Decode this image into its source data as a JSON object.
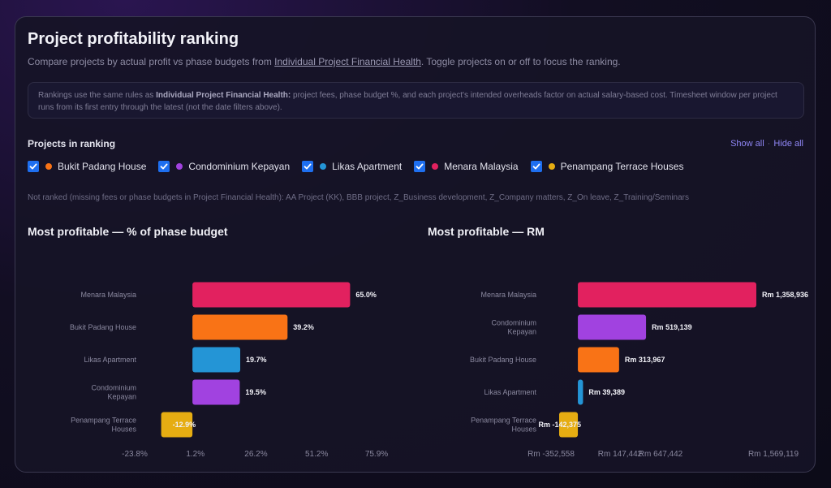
{
  "header": {
    "title": "Project profitability ranking",
    "subtitle_pre": "Compare projects by actual profit vs phase budgets from ",
    "subtitle_link": "Individual Project Financial Health",
    "subtitle_post": ". Toggle projects on or off to focus the ranking."
  },
  "note": {
    "line_pre": "Rankings use the same rules as ",
    "line_bold": "Individual Project Financial Health:",
    "line_post": " project fees, phase budget %, and each project's intended overheads factor on actual salary-based cost. Timesheet window per project runs from its first entry through the latest (not the date filters above)."
  },
  "ranking": {
    "label": "Projects in ranking",
    "show_all": "Show all",
    "separator": "·",
    "hide_all": "Hide all",
    "projects": [
      {
        "name": "Bukit Padang House",
        "color": "#f97316",
        "checked": true
      },
      {
        "name": "Condominium Kepayan",
        "color": "#a142e0",
        "checked": true
      },
      {
        "name": "Likas Apartment",
        "color": "#2495d6",
        "checked": true
      },
      {
        "name": "Menara Malaysia",
        "color": "#e2215f",
        "checked": true
      },
      {
        "name": "Penampang Terrace Houses",
        "color": "#e6ad12",
        "checked": true
      }
    ],
    "not_ranked": "Not ranked (missing fees or phase budgets in Project Financial Health): AA Project (KK), BBB project, Z_Business development, Z_Company matters, Z_On leave, Z_Training/Seminars"
  },
  "chart_data": [
    {
      "type": "bar",
      "orientation": "horizontal",
      "title": "Most profitable — % of phase budget",
      "categories": [
        [
          "Menara Malaysia"
        ],
        [
          "Bukit Padang House"
        ],
        [
          "Likas Apartment"
        ],
        [
          "Condominium",
          "Kepayan"
        ],
        [
          "Penampang Terrace",
          "Houses"
        ]
      ],
      "values": [
        65.0,
        39.2,
        19.7,
        19.5,
        -12.9
      ],
      "value_labels": [
        "65.0%",
        "39.2%",
        "19.7%",
        "19.5%",
        "-12.9%"
      ],
      "colors": [
        "#e2215f",
        "#f97316",
        "#2495d6",
        "#a142e0",
        "#e6ad12"
      ],
      "xlim": [
        -23.8,
        75.9
      ],
      "ticks": [
        -23.8,
        1.2,
        26.2,
        51.2,
        75.9
      ],
      "tick_labels": [
        "-23.8%",
        "1.2%",
        "26.2%",
        "51.2%",
        "75.9%"
      ],
      "grid": false
    },
    {
      "type": "bar",
      "orientation": "horizontal",
      "title": "Most profitable — RM",
      "categories": [
        [
          "Menara Malaysia"
        ],
        [
          "Condominium",
          "Kepayan"
        ],
        [
          "Bukit Padang House"
        ],
        [
          "Likas Apartment"
        ],
        [
          "Penampang Terrace",
          "Houses"
        ]
      ],
      "values": [
        1358936,
        519139,
        313967,
        39389,
        -142375
      ],
      "value_labels": [
        "Rm 1,358,936",
        "Rm 519,139",
        "Rm 313,967",
        "Rm 39,389",
        "Rm -142,375"
      ],
      "colors": [
        "#e2215f",
        "#a142e0",
        "#f97316",
        "#2495d6",
        "#e6ad12"
      ],
      "xlim": [
        -352558,
        1569119
      ],
      "ticks": [
        -352558,
        147442,
        647442,
        1569119
      ],
      "tick_labels": [
        "Rm -352,558",
        "Rm 147,442",
        "Rm 647,442",
        "Rm 1,569,119"
      ],
      "grid": false
    }
  ]
}
